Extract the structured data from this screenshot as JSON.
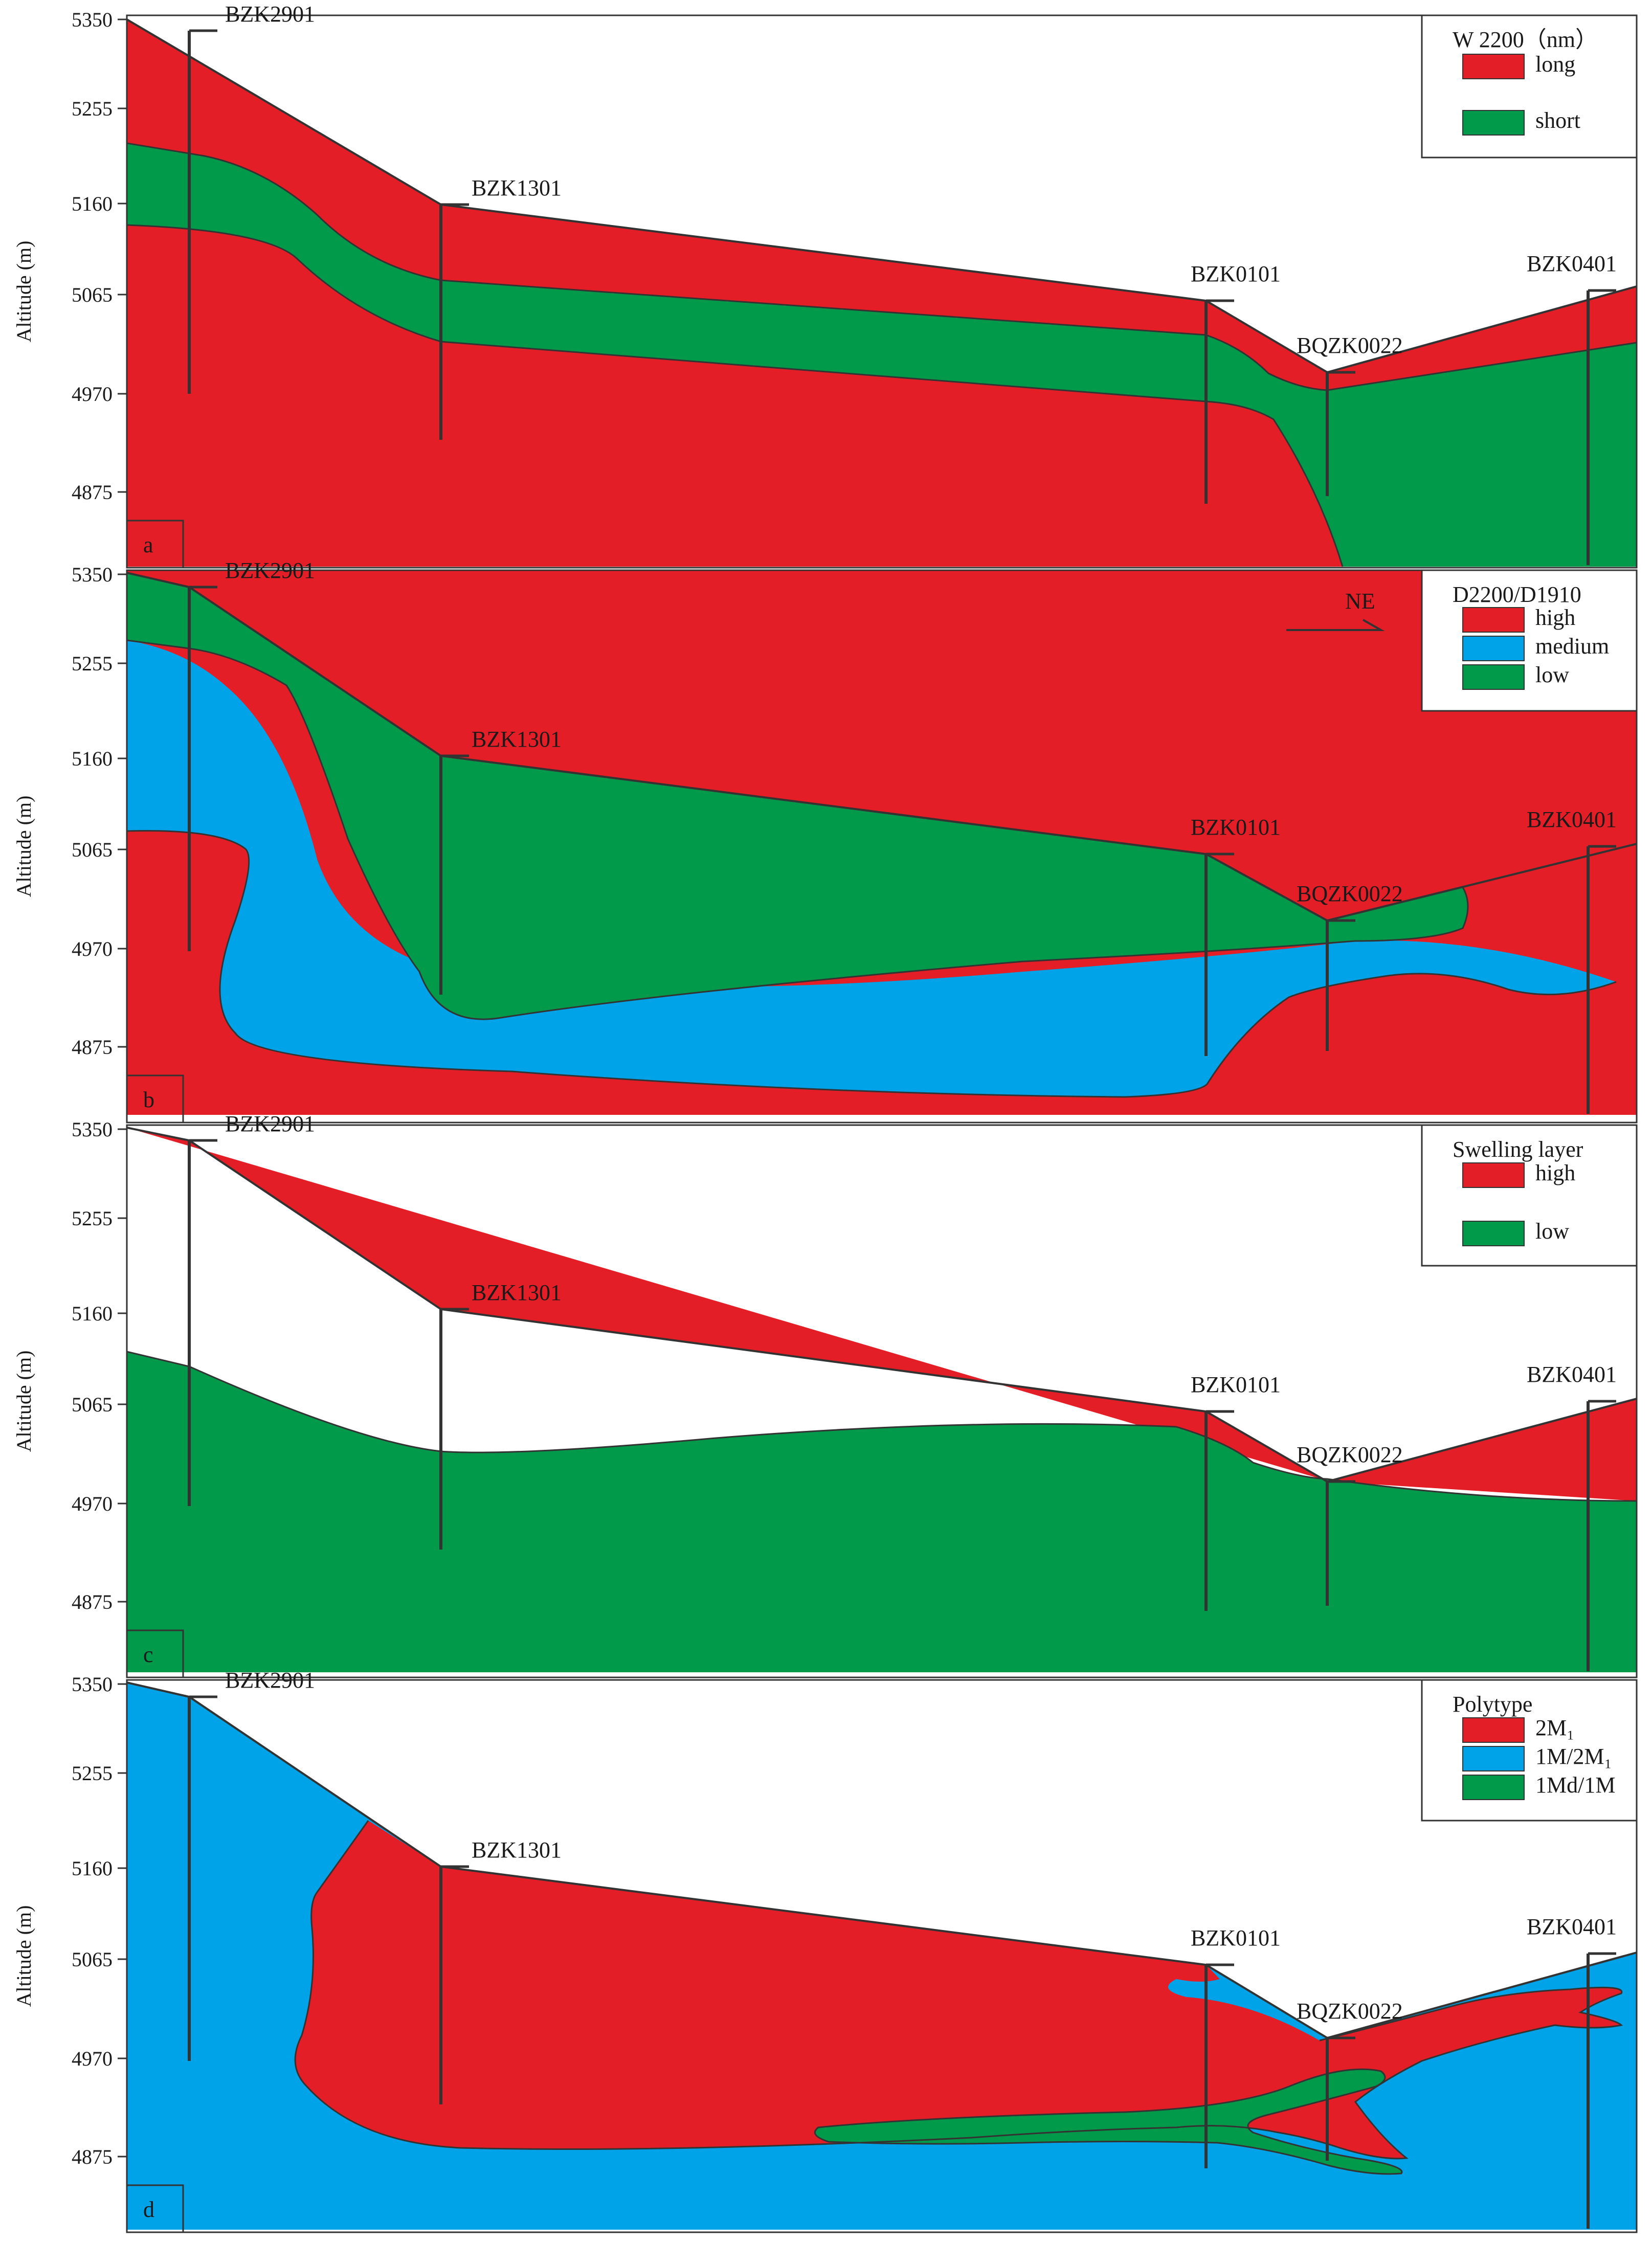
{
  "figure": {
    "axis_title": "Altitude (m)",
    "y_ticks": [
      "5350",
      "5255",
      "5160",
      "5065",
      "4970",
      "4875"
    ],
    "wells": [
      "BZK2901",
      "BZK1301",
      "BZK0101",
      "BQZK0022",
      "BZK0401"
    ],
    "direction_label": "NE"
  },
  "colors": {
    "red": "#e31e26",
    "green": "#009a4a",
    "blue": "#00a2e8",
    "line": "#333333"
  },
  "panels": [
    {
      "letter": "a",
      "legend_title": "W 2200（nm）",
      "legend_items": [
        {
          "label": "long",
          "color": "#e31e26"
        },
        {
          "label": "short",
          "color": "#009a4a"
        }
      ]
    },
    {
      "letter": "b",
      "legend_title": "D2200/D1910",
      "legend_items": [
        {
          "label": "high",
          "color": "#e31e26"
        },
        {
          "label": "medium",
          "color": "#00a2e8"
        },
        {
          "label": "low",
          "color": "#009a4a"
        }
      ]
    },
    {
      "letter": "c",
      "legend_title": "Swelling layer",
      "legend_items": [
        {
          "label": "high",
          "color": "#e31e26"
        },
        {
          "label": "low",
          "color": "#009a4a"
        }
      ]
    },
    {
      "letter": "d",
      "legend_title": "Polytype",
      "legend_items": [
        {
          "label": "2M₁",
          "color": "#e31e26"
        },
        {
          "label": "1M/2M₁",
          "color": "#00a2e8"
        },
        {
          "label": "1Md/1M",
          "color": "#009a4a"
        }
      ]
    }
  ]
}
